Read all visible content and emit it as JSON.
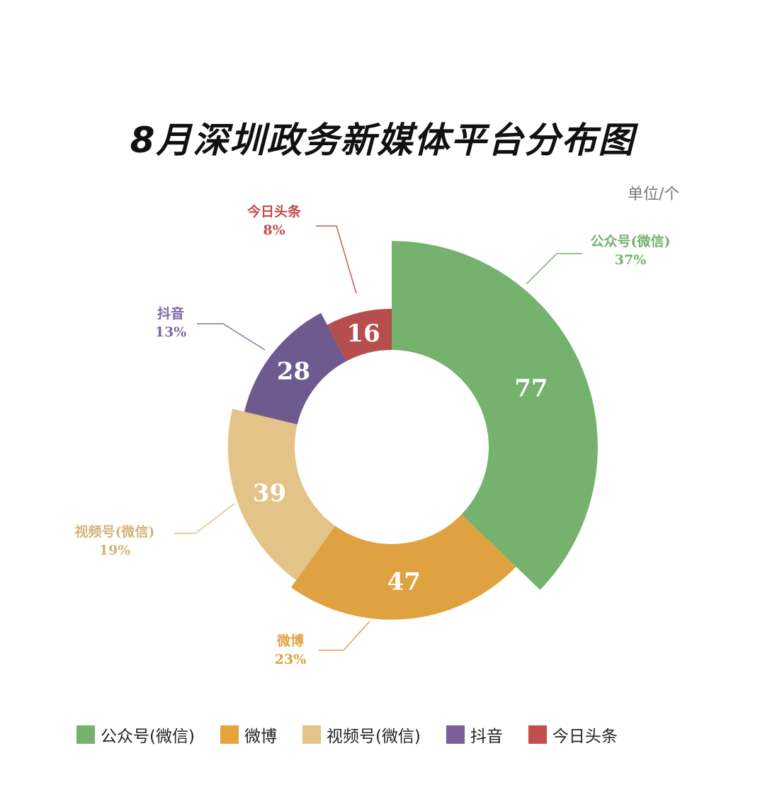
{
  "chart_data": {
    "type": "pie",
    "variant": "rose-donut",
    "title": "8月深圳政务新媒体平台分布图",
    "unit": "单位/个",
    "legend_position": "bottom",
    "slices": [
      {
        "name": "公众号(微信)",
        "value": 77,
        "percent": "37%",
        "color": "#75b26d"
      },
      {
        "name": "微博",
        "value": 47,
        "percent": "23%",
        "color": "#e0a240"
      },
      {
        "name": "视频号(微信)",
        "value": 39,
        "percent": "19%",
        "color": "#e3c387"
      },
      {
        "name": "抖音",
        "value": 28,
        "percent": "13%",
        "color": "#6e5a8f"
      },
      {
        "name": "今日头条",
        "value": 16,
        "percent": "8%",
        "color": "#b64e4d"
      }
    ]
  }
}
